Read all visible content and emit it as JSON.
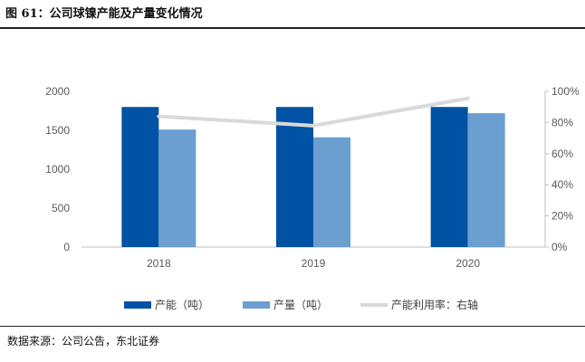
{
  "figure": {
    "title": "图 61：公司球镍产能及产量变化情况",
    "source": "数据来源：公司公告，东北证券"
  },
  "chart_data": {
    "type": "bar",
    "categories": [
      "2018",
      "2019",
      "2020"
    ],
    "series": [
      {
        "name": "产能（吨）",
        "kind": "bar",
        "axis": "left",
        "color": "#0052A5",
        "values": [
          1800,
          1800,
          1800
        ]
      },
      {
        "name": "产量（吨）",
        "kind": "bar",
        "axis": "left",
        "color": "#6A9FD0",
        "values": [
          1510,
          1410,
          1720
        ]
      },
      {
        "name": "产能利用率：右轴",
        "kind": "line",
        "axis": "right",
        "color": "#D9D9D9",
        "values": [
          0.84,
          0.78,
          0.955
        ]
      }
    ],
    "y_left": {
      "lim": [
        0,
        2000
      ],
      "ticks": [
        "0",
        "500",
        "1000",
        "1500",
        "2000"
      ]
    },
    "y_right": {
      "lim": [
        0,
        1
      ],
      "ticks": [
        "0%",
        "20%",
        "40%",
        "60%",
        "80%",
        "100%"
      ]
    },
    "grid": false,
    "legend": "bottom"
  }
}
